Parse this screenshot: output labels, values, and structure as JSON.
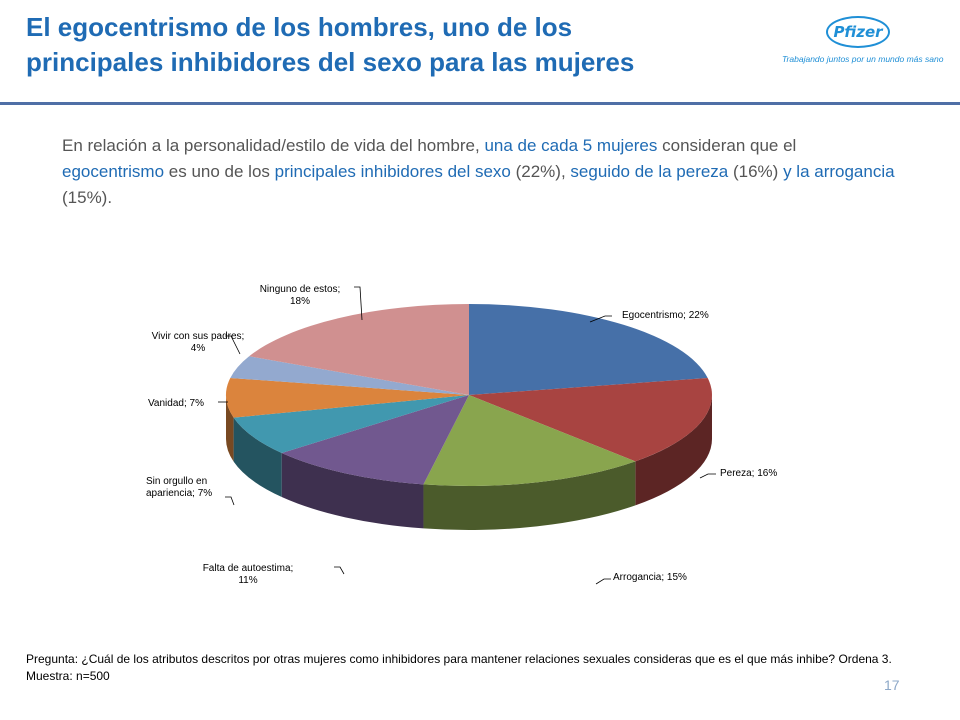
{
  "title_lines": [
    "El egocentrismo de los hombres, uno de los",
    "principales inhibidores del sexo para las mujeres"
  ],
  "logo": {
    "brand": "Pfizer",
    "tagline": "Trabajando juntos por un mundo más sano",
    "color": "#1F8FD6"
  },
  "intro": {
    "p1": "En relación a la personalidad/estilo de vida del hombre, ",
    "h1": "una de cada 5 mujeres",
    "p2": " consideran que el ",
    "h2": "egocentrismo",
    "p3": " es uno de los ",
    "h3": "principales inhibidores del sexo",
    "p4": " (22%), ",
    "h4": "seguido de la pereza",
    "p5": " (16%) ",
    "h5": "y la arrogancia",
    "p6": " (15%)."
  },
  "chart_data": {
    "type": "pie",
    "style": "3d",
    "slices": [
      {
        "label": "Egocentrismo",
        "value": 22,
        "data_label": "Egocentrismo; 22%",
        "color": "#4670A8"
      },
      {
        "label": "Pereza",
        "value": 16,
        "data_label": "Pereza; 16%",
        "color": "#A84441"
      },
      {
        "label": "Arrogancia",
        "value": 15,
        "data_label": "Arrogancia; 15%",
        "color": "#89A54E"
      },
      {
        "label": "Falta de autoestima",
        "value": 11,
        "data_label": "Falta de autoestima; 11%",
        "color": "#71588F"
      },
      {
        "label": "Sin orgullo en apariencia",
        "value": 7,
        "data_label": "Sin orgullo en apariencia; 7%",
        "color": "#4198AF"
      },
      {
        "label": "Vanidad",
        "value": 7,
        "data_label": "Vanidad; 7%",
        "color": "#DB843D"
      },
      {
        "label": "Vivir con sus padres",
        "value": 4,
        "data_label": "Vivir con sus padres; 4%",
        "color": "#93A9CF"
      },
      {
        "label": "Ninguno de estos",
        "value": 18,
        "data_label": "Ninguno de estos; 18%",
        "color": "#D09090"
      }
    ],
    "legend": "none"
  },
  "footnote": {
    "question": "Pregunta: ¿Cuál de los atributos descritos por otras mujeres como inhibidores para mantener relaciones sexuales consideras que es el que más inhibe? Ordena 3.",
    "sample": "Muestra: n=500"
  },
  "page_number": "17"
}
